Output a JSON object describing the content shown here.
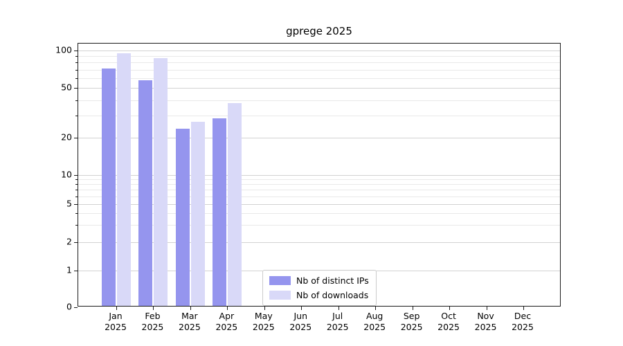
{
  "chart_data": {
    "type": "bar",
    "title": "gprege 2025",
    "categories": [
      "Jan",
      "Feb",
      "Mar",
      "Apr",
      "May",
      "Jun",
      "Jul",
      "Aug",
      "Sep",
      "Oct",
      "Nov",
      "Dec"
    ],
    "category_year": "2025",
    "series": [
      {
        "name": "Nb of distinct IPs",
        "color": "#9595ee",
        "values": [
          70,
          56,
          23,
          28,
          0,
          0,
          0,
          0,
          0,
          0,
          0,
          0
        ]
      },
      {
        "name": "Nb of downloads",
        "color": "#d9d9f8",
        "values": [
          93,
          85,
          26,
          37,
          0,
          0,
          0,
          0,
          0,
          0,
          0,
          0
        ]
      }
    ],
    "yscale": "symlog",
    "ylim": [
      0,
      115
    ],
    "y_major_ticks": [
      0,
      1,
      2,
      5,
      10,
      20,
      50,
      100
    ],
    "y_minor_ticks": [
      3,
      4,
      6,
      7,
      8,
      9,
      30,
      40,
      60,
      70,
      80,
      90
    ],
    "grid": "horizontal-major-and-minor",
    "legend_position": "inside-bottom-center"
  }
}
